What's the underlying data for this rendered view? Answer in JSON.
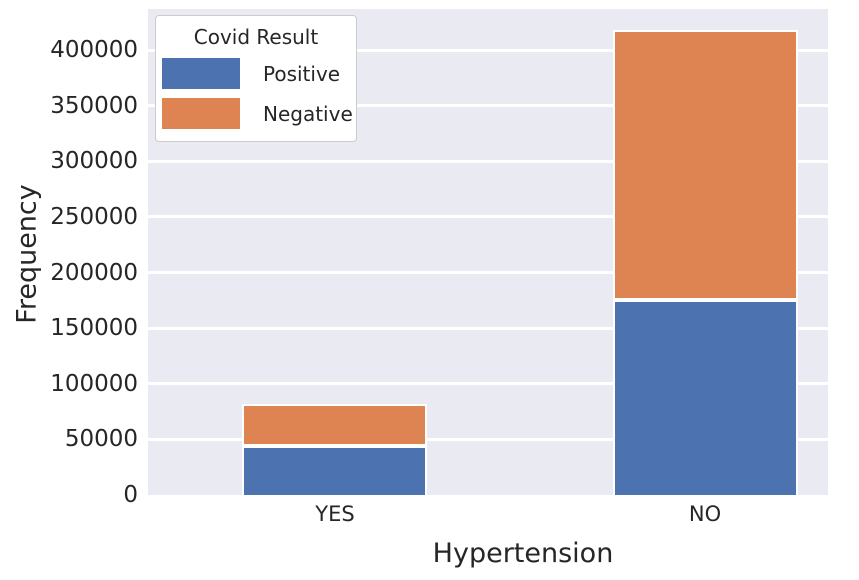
{
  "chart_data": {
    "type": "bar",
    "stacked": true,
    "categories": [
      "YES",
      "NO"
    ],
    "series": [
      {
        "name": "Positive",
        "color": "#4c72b0",
        "values": [
          44000,
          175000
        ]
      },
      {
        "name": "Negative",
        "color": "#dd8452",
        "values": [
          38000,
          243000
        ]
      }
    ],
    "totals": [
      82000,
      418000
    ],
    "title": "",
    "xlabel": "Hypertension",
    "ylabel": "Frequency",
    "yticks": [
      0,
      50000,
      100000,
      150000,
      200000,
      250000,
      300000,
      350000,
      400000
    ],
    "ylim": [
      0,
      437000
    ],
    "grid": true,
    "legend": {
      "title": "Covid Result",
      "position": "upper left",
      "entries": [
        "Positive",
        "Negative"
      ]
    },
    "colors": {
      "plot_background": "#eaeaf2",
      "gridline": "#ffffff",
      "text": "#262626",
      "figure_background": "#ffffff"
    }
  }
}
